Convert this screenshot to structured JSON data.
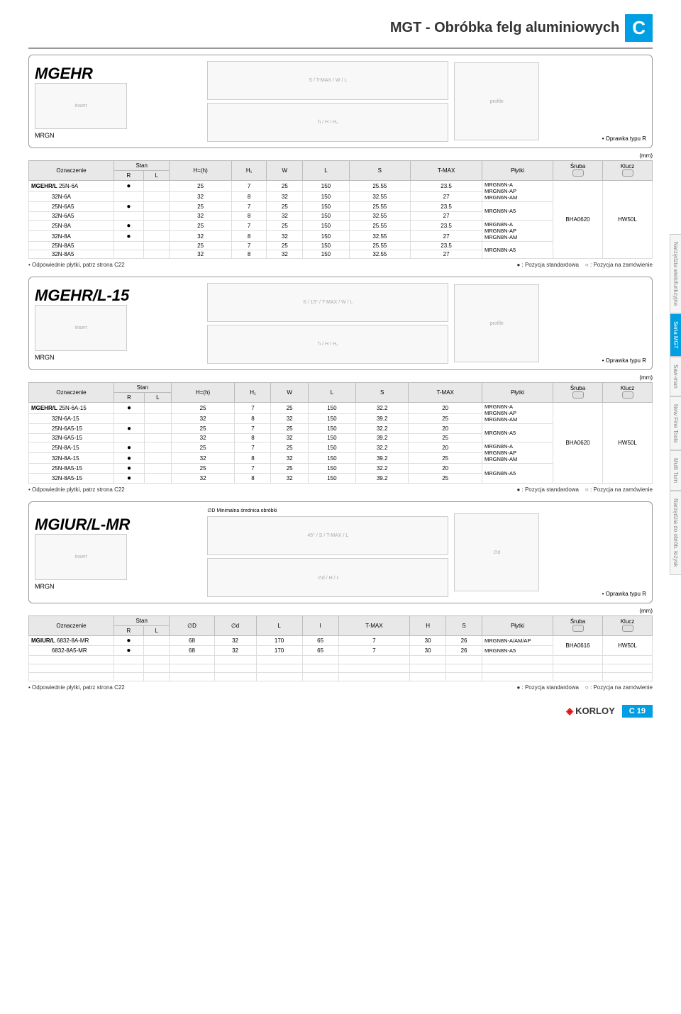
{
  "page": {
    "title": "MGT - Obróbka felg aluminiowych",
    "badge": "C",
    "footer_brand": "KORLOY",
    "footer_page": "C 19"
  },
  "side_tabs": [
    "Narzędzia wielofunkcyjne",
    "Seria MGT",
    "Saw-man",
    "New Fine Tools",
    "Multi Turn",
    "Narzędzia do obrób. łożysk"
  ],
  "side_tab_active_index": 1,
  "common": {
    "mrgn": "MRGN",
    "oprawka": "• Oprawka typu R",
    "mm": "(mm)",
    "odpowiednie": "• Odpowiednie płytki, patrz strona C22",
    "legend_std": "● : Pozycja standardowa",
    "legend_order": "○ : Pozycja na zamówienie",
    "oznaczenie": "Oznaczenie",
    "stan": "Stan",
    "R": "R",
    "L": "L",
    "plytki": "Płytki",
    "sruba": "Śruba",
    "klucz": "Klucz"
  },
  "section1": {
    "model": "MGEHR",
    "cols": [
      "H=(h)",
      "H₁",
      "W",
      "L",
      "S",
      "T-MAX"
    ],
    "prefix": "MGEHR/L",
    "sruba": "BHA0620",
    "klucz": "HW50L",
    "rows": [
      {
        "name": "25N-6A",
        "r": "●",
        "l": "",
        "v": [
          "25",
          "7",
          "25",
          "150",
          "25.55",
          "23.5"
        ]
      },
      {
        "name": "32N-6A",
        "r": "",
        "l": "",
        "v": [
          "32",
          "8",
          "32",
          "150",
          "32.55",
          "27"
        ]
      },
      {
        "name": "25N-6A5",
        "r": "●",
        "l": "",
        "v": [
          "25",
          "7",
          "25",
          "150",
          "25.55",
          "23.5"
        ]
      },
      {
        "name": "32N-6A5",
        "r": "",
        "l": "",
        "v": [
          "32",
          "8",
          "32",
          "150",
          "32.55",
          "27"
        ]
      },
      {
        "name": "25N-8A",
        "r": "●",
        "l": "",
        "v": [
          "25",
          "7",
          "25",
          "150",
          "25.55",
          "23.5"
        ]
      },
      {
        "name": "32N-8A",
        "r": "●",
        "l": "",
        "v": [
          "32",
          "8",
          "32",
          "150",
          "32.55",
          "27"
        ]
      },
      {
        "name": "25N-8A5",
        "r": "",
        "l": "",
        "v": [
          "25",
          "7",
          "25",
          "150",
          "25.55",
          "23.5"
        ]
      },
      {
        "name": "32N-8A5",
        "r": "",
        "l": "",
        "v": [
          "32",
          "8",
          "32",
          "150",
          "32.55",
          "27"
        ]
      }
    ],
    "plytki_groups": [
      "MRGN6N-A\nMRGN6N-AP\nMRGN6N-AM",
      "MRGN6N-A5",
      "MRGN8N-A\nMRGN8N-AP\nMRGN8N-AM",
      "MRGN8N-A5"
    ]
  },
  "section2": {
    "model": "MGEHR/L-15",
    "cols": [
      "H=(h)",
      "H₁",
      "W",
      "L",
      "S",
      "T-MAX"
    ],
    "prefix": "MGEHR/L",
    "sruba": "BHA0620",
    "klucz": "HW50L",
    "rows": [
      {
        "name": "25N-6A-15",
        "r": "●",
        "l": "",
        "v": [
          "25",
          "7",
          "25",
          "150",
          "32.2",
          "20"
        ]
      },
      {
        "name": "32N-6A-15",
        "r": "",
        "l": "",
        "v": [
          "32",
          "8",
          "32",
          "150",
          "39.2",
          "25"
        ]
      },
      {
        "name": "25N-6A5-15",
        "r": "●",
        "l": "",
        "v": [
          "25",
          "7",
          "25",
          "150",
          "32.2",
          "20"
        ]
      },
      {
        "name": "32N-6A5-15",
        "r": "",
        "l": "",
        "v": [
          "32",
          "8",
          "32",
          "150",
          "39.2",
          "25"
        ]
      },
      {
        "name": "25N-8A-15",
        "r": "●",
        "l": "",
        "v": [
          "25",
          "7",
          "25",
          "150",
          "32.2",
          "20"
        ]
      },
      {
        "name": "32N-8A-15",
        "r": "●",
        "l": "",
        "v": [
          "32",
          "8",
          "32",
          "150",
          "39.2",
          "25"
        ]
      },
      {
        "name": "25N-8A5-15",
        "r": "●",
        "l": "",
        "v": [
          "25",
          "7",
          "25",
          "150",
          "32.2",
          "20"
        ]
      },
      {
        "name": "32N-8A5-15",
        "r": "●",
        "l": "",
        "v": [
          "32",
          "8",
          "32",
          "150",
          "39.2",
          "25"
        ]
      }
    ],
    "plytki_groups": [
      "MRGN6N-A\nMRGN6N-AP\nMRGN6N-AM",
      "MRGN6N-A5",
      "MRGN8N-A\nMRGN8N-AP\nMRGN8N-AM",
      "MRGN8N-A5"
    ]
  },
  "section3": {
    "model": "MGIUR/L-MR",
    "diag_note": "∅D Minimalna średnica obróbki",
    "cols": [
      "∅D",
      "∅d",
      "L",
      "l",
      "T-MAX",
      "H",
      "S"
    ],
    "prefix": "MGIUR/L",
    "sruba": "BHA0616",
    "klucz": "HW50L",
    "rows": [
      {
        "name": "6832-8A-MR",
        "r": "●",
        "l": "",
        "v": [
          "68",
          "32",
          "170",
          "65",
          "7",
          "30",
          "26"
        ]
      },
      {
        "name": "6832-8A5-MR",
        "r": "●",
        "l": "",
        "v": [
          "68",
          "32",
          "170",
          "65",
          "7",
          "30",
          "26"
        ]
      }
    ],
    "plytki_groups": [
      "MRGN8N-A/AM/AP",
      "MRGN8N-A5"
    ]
  }
}
